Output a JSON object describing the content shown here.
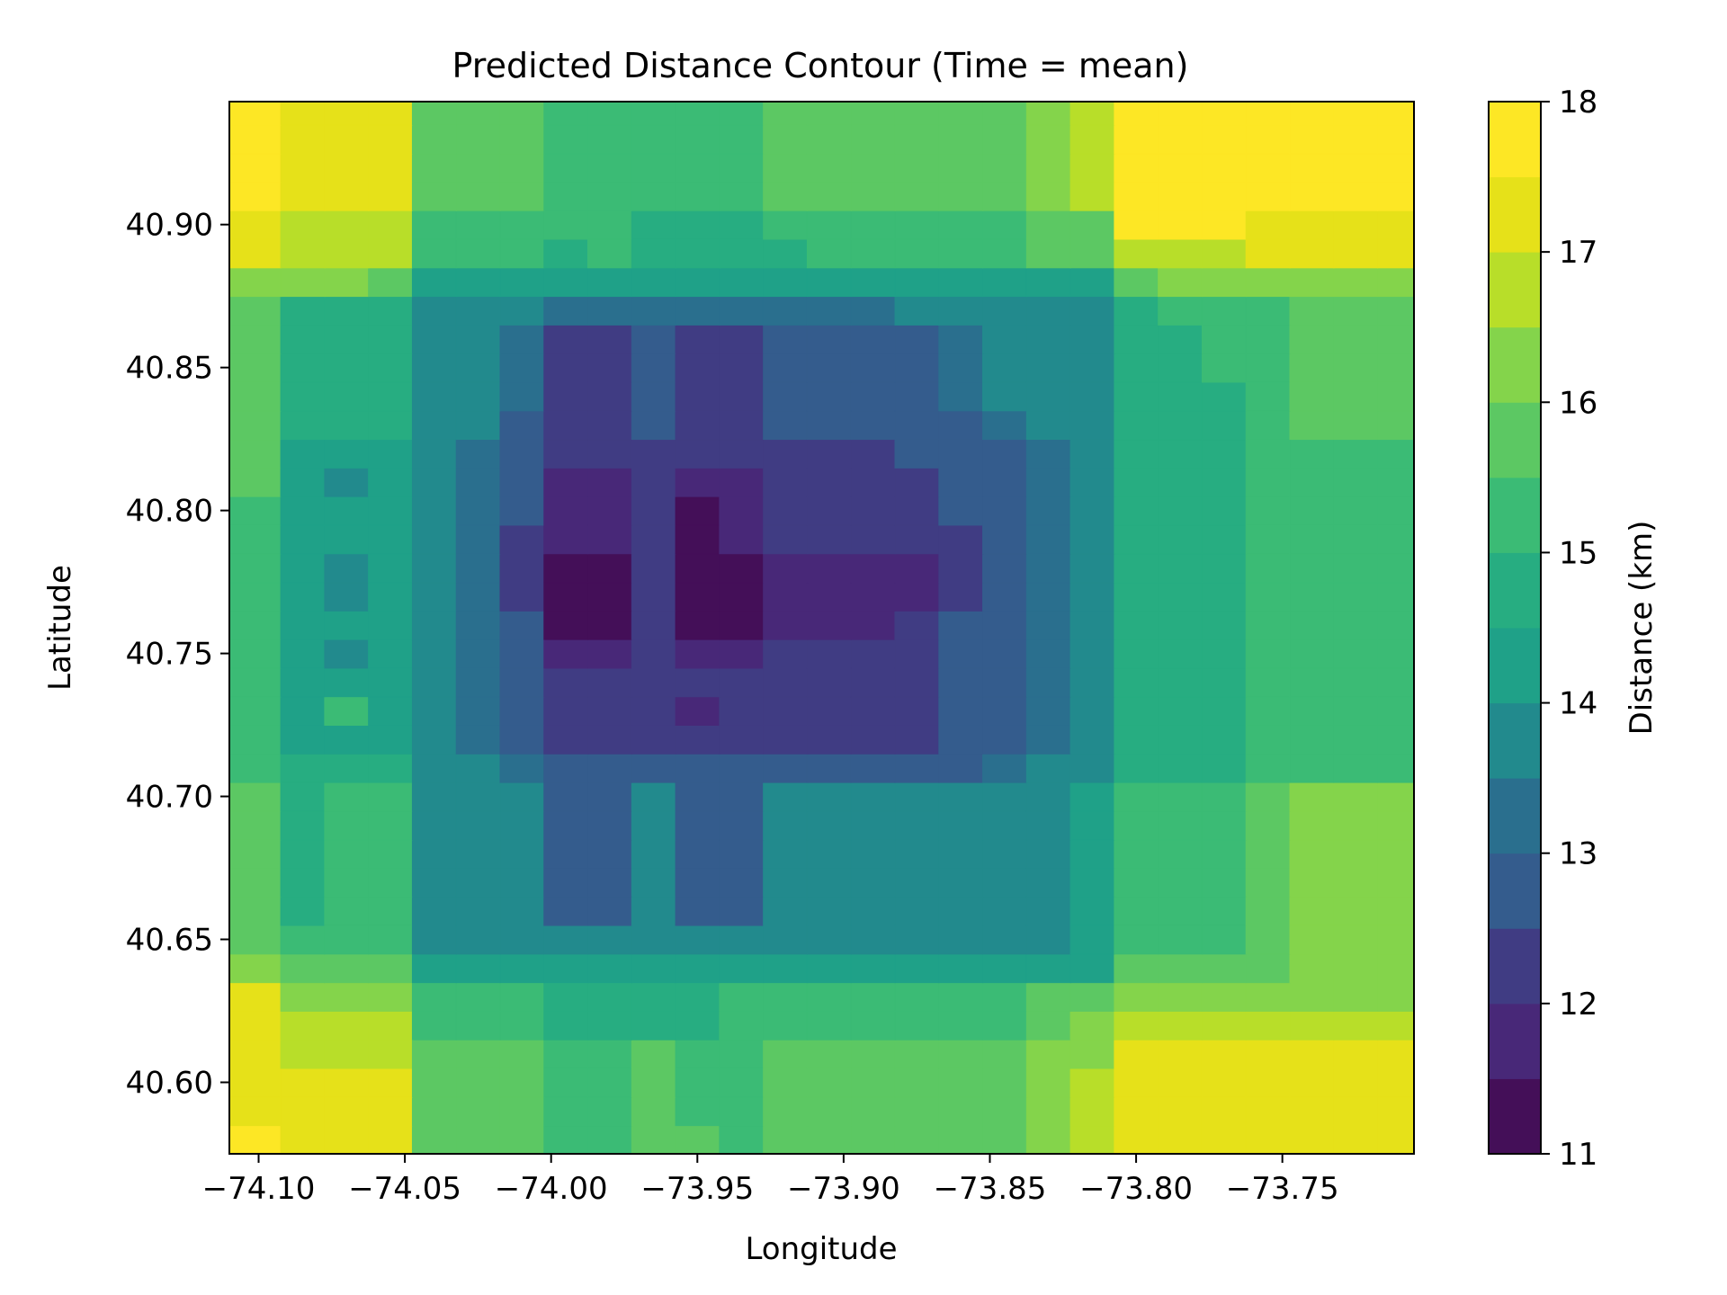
{
  "chart_data": {
    "type": "heatmap",
    "subtype": "filled-contour",
    "title": "Predicted Distance Contour (Time = mean)",
    "xlabel": "Longitude",
    "ylabel": "Latitude",
    "colorbar_label": "Distance (km)",
    "xlim": [
      -74.11,
      -73.705
    ],
    "ylim": [
      40.575,
      40.943
    ],
    "x_ticks": [
      -74.1,
      -74.05,
      -74.0,
      -73.95,
      -73.9,
      -73.85,
      -73.8,
      -73.75
    ],
    "x_tick_labels": [
      "−74.10",
      "−74.05",
      "−74.00",
      "−73.95",
      "−73.90",
      "−73.85",
      "−73.80",
      "−73.75"
    ],
    "y_ticks": [
      40.6,
      40.65,
      40.7,
      40.75,
      40.8,
      40.85,
      40.9
    ],
    "y_tick_labels": [
      "40.60",
      "40.65",
      "40.70",
      "40.75",
      "40.80",
      "40.85",
      "40.90"
    ],
    "colorbar": {
      "range": [
        11,
        18
      ],
      "ticks": [
        11,
        12,
        13,
        14,
        15,
        16,
        17,
        18
      ],
      "tick_labels": [
        "11",
        "12",
        "13",
        "14",
        "15",
        "16",
        "17",
        "18"
      ],
      "level_step": 0.5,
      "colormap": "viridis",
      "level_colors": [
        "#440f58",
        "#482878",
        "#403c83",
        "#345c8d",
        "#2a6f8e",
        "#228a8d",
        "#1fa188",
        "#27ad81",
        "#3bbb75",
        "#5cc863",
        "#84d44b",
        "#b8de29",
        "#e6e119",
        "#fde725"
      ]
    },
    "grid": false,
    "x": [
      -74.1,
      -74.085,
      -74.07,
      -74.055,
      -74.04,
      -74.025,
      -74.01,
      -73.995,
      -73.98,
      -73.965,
      -73.95,
      -73.935,
      -73.92,
      -73.905,
      -73.89,
      -73.875,
      -73.86,
      -73.845,
      -73.83,
      -73.815,
      -73.8,
      -73.785,
      -73.77,
      -73.755,
      -73.74,
      -73.725,
      -73.71
    ],
    "y": [
      40.58,
      40.59,
      40.6,
      40.61,
      40.62,
      40.63,
      40.64,
      40.65,
      40.66,
      40.67,
      40.68,
      40.69,
      40.7,
      40.71,
      40.72,
      40.73,
      40.74,
      40.75,
      40.76,
      40.77,
      40.78,
      40.79,
      40.8,
      40.81,
      40.82,
      40.83,
      40.84,
      40.85,
      40.86,
      40.87,
      40.88,
      40.89,
      40.9,
      40.91,
      40.92,
      40.93,
      40.94
    ],
    "z": [
      [
        17.8,
        17.3,
        17.3,
        17.3,
        15.9,
        15.8,
        15.8,
        15.2,
        15.2,
        15.6,
        15.6,
        15.2,
        15.8,
        15.8,
        15.8,
        15.8,
        15.8,
        15.8,
        16.3,
        16.8,
        17.3,
        17.3,
        17.3,
        17.3,
        17.3,
        17.3,
        17.3
      ],
      [
        17.3,
        17.3,
        17.3,
        17.3,
        15.9,
        15.8,
        15.8,
        15.2,
        15.2,
        15.6,
        15.2,
        15.2,
        15.8,
        15.8,
        15.8,
        15.8,
        15.8,
        15.8,
        16.3,
        16.8,
        17.3,
        17.3,
        17.3,
        17.3,
        17.3,
        17.3,
        17.3
      ],
      [
        17.3,
        17.3,
        17.3,
        17.3,
        15.9,
        15.8,
        15.8,
        15.2,
        15.2,
        15.6,
        15.2,
        15.2,
        15.8,
        15.8,
        15.8,
        15.8,
        15.8,
        15.8,
        16.3,
        16.8,
        17.3,
        17.3,
        17.3,
        17.3,
        17.3,
        17.3,
        17.3
      ],
      [
        17.3,
        16.8,
        16.8,
        16.8,
        15.8,
        15.8,
        15.8,
        15.2,
        15.2,
        15.6,
        15.2,
        15.2,
        15.8,
        15.8,
        15.8,
        15.8,
        15.8,
        15.8,
        16.3,
        16.3,
        17.3,
        17.3,
        17.3,
        17.3,
        17.3,
        17.3,
        17.3
      ],
      [
        17.3,
        16.8,
        16.8,
        16.8,
        15.4,
        15.4,
        15.4,
        14.8,
        14.8,
        14.8,
        14.8,
        15.4,
        15.4,
        15.4,
        15.4,
        15.4,
        15.4,
        15.4,
        15.8,
        16.3,
        16.8,
        16.8,
        16.8,
        16.8,
        16.8,
        16.8,
        16.8
      ],
      [
        17.3,
        16.3,
        16.3,
        16.3,
        15.4,
        15.4,
        15.4,
        14.8,
        14.8,
        14.8,
        14.8,
        15.4,
        15.4,
        15.4,
        15.4,
        15.4,
        15.4,
        15.4,
        15.8,
        15.8,
        16.3,
        16.3,
        16.3,
        16.3,
        16.3,
        16.3,
        16.3
      ],
      [
        16.3,
        15.8,
        15.8,
        15.8,
        14.3,
        14.3,
        14.3,
        14.3,
        14.3,
        14.3,
        14.3,
        14.3,
        14.3,
        14.3,
        14.3,
        14.3,
        14.3,
        14.3,
        14.3,
        14.3,
        15.8,
        15.8,
        15.8,
        15.8,
        16.3,
        16.3,
        16.3
      ],
      [
        15.8,
        15.4,
        15.4,
        15.4,
        13.8,
        13.5,
        13.5,
        13.5,
        13.5,
        13.5,
        13.5,
        13.5,
        13.5,
        13.5,
        13.5,
        13.5,
        13.5,
        13.8,
        13.8,
        14.3,
        15.4,
        15.4,
        15.4,
        15.8,
        16.3,
        16.3,
        16.3
      ],
      [
        15.8,
        14.8,
        15.4,
        15.4,
        13.8,
        13.5,
        13.5,
        12.8,
        12.8,
        13.5,
        12.8,
        12.8,
        13.5,
        13.5,
        13.5,
        13.5,
        13.5,
        13.8,
        13.8,
        14.3,
        15.4,
        15.4,
        15.4,
        15.8,
        16.3,
        16.3,
        16.3
      ],
      [
        15.8,
        14.8,
        15.4,
        15.4,
        13.8,
        13.5,
        13.5,
        12.8,
        12.8,
        13.5,
        12.8,
        12.8,
        13.5,
        13.5,
        13.5,
        13.5,
        13.5,
        13.8,
        13.8,
        14.3,
        15.4,
        15.4,
        15.4,
        15.8,
        16.3,
        16.3,
        16.3
      ],
      [
        15.8,
        14.8,
        15.4,
        15.4,
        13.8,
        13.5,
        13.5,
        12.8,
        12.8,
        13.5,
        12.8,
        12.8,
        13.5,
        13.5,
        13.5,
        13.5,
        13.5,
        13.8,
        13.8,
        14.3,
        15.4,
        15.4,
        15.4,
        15.8,
        16.3,
        16.3,
        16.3
      ],
      [
        15.8,
        14.8,
        15.4,
        15.4,
        13.8,
        13.5,
        13.5,
        12.8,
        12.8,
        13.5,
        12.8,
        12.8,
        13.5,
        13.5,
        13.5,
        13.5,
        13.5,
        13.8,
        13.8,
        14.3,
        15.4,
        15.4,
        15.4,
        15.8,
        16.3,
        16.3,
        16.3
      ],
      [
        15.8,
        14.8,
        15.4,
        15.4,
        13.8,
        13.5,
        13.5,
        12.8,
        12.8,
        13.5,
        12.8,
        12.8,
        13.5,
        13.5,
        13.5,
        13.5,
        13.5,
        13.8,
        13.8,
        14.3,
        15.4,
        15.4,
        15.4,
        15.8,
        16.3,
        16.3,
        16.3
      ],
      [
        15.4,
        14.8,
        14.8,
        14.8,
        13.8,
        13.5,
        13.2,
        12.8,
        12.8,
        12.8,
        12.8,
        12.8,
        12.8,
        12.8,
        12.8,
        12.8,
        12.8,
        13.2,
        13.5,
        13.8,
        14.8,
        14.8,
        14.8,
        15.4,
        15.4,
        15.4,
        15.4
      ],
      [
        15.4,
        14.3,
        14.3,
        14.3,
        13.8,
        13.2,
        12.8,
        12.3,
        12.3,
        12.3,
        12.3,
        12.3,
        12.3,
        12.3,
        12.3,
        12.3,
        12.8,
        12.8,
        13.2,
        13.8,
        14.8,
        14.8,
        14.8,
        15.4,
        15.4,
        15.4,
        15.4
      ],
      [
        15.4,
        14.3,
        15.1,
        14.3,
        13.8,
        13.2,
        12.8,
        12.3,
        12.3,
        12.3,
        11.8,
        12.3,
        12.3,
        12.3,
        12.3,
        12.3,
        12.8,
        12.8,
        13.2,
        13.8,
        14.8,
        14.8,
        14.8,
        15.4,
        15.4,
        15.4,
        15.4
      ],
      [
        15.4,
        14.3,
        14.3,
        14.3,
        13.8,
        13.2,
        12.8,
        12.3,
        12.3,
        12.3,
        12.3,
        12.3,
        12.3,
        12.3,
        12.3,
        12.3,
        12.8,
        12.8,
        13.2,
        13.8,
        14.8,
        14.8,
        14.8,
        15.4,
        15.4,
        15.4,
        15.4
      ],
      [
        15.4,
        14.3,
        13.8,
        14.3,
        13.8,
        13.2,
        12.8,
        11.8,
        11.8,
        12.3,
        11.8,
        11.8,
        12.3,
        12.3,
        12.3,
        12.3,
        12.8,
        12.8,
        13.2,
        13.8,
        14.8,
        14.8,
        14.8,
        15.4,
        15.4,
        15.4,
        15.4
      ],
      [
        15.4,
        14.3,
        14.3,
        14.3,
        13.8,
        13.2,
        12.8,
        11.3,
        11.3,
        12.3,
        11.3,
        11.3,
        11.8,
        11.8,
        11.8,
        12.3,
        12.8,
        12.8,
        13.2,
        13.8,
        14.8,
        14.8,
        14.8,
        15.4,
        15.4,
        15.4,
        15.4
      ],
      [
        15.4,
        14.3,
        13.8,
        14.3,
        13.8,
        13.2,
        12.3,
        11.3,
        11.3,
        12.3,
        11.3,
        11.3,
        11.8,
        11.8,
        11.8,
        11.8,
        12.3,
        12.8,
        13.2,
        13.8,
        14.8,
        14.8,
        14.8,
        15.4,
        15.4,
        15.4,
        15.4
      ],
      [
        15.4,
        14.3,
        13.8,
        14.3,
        13.8,
        13.2,
        12.3,
        11.3,
        11.3,
        12.3,
        11.3,
        11.3,
        11.8,
        11.8,
        11.8,
        11.8,
        12.3,
        12.8,
        13.2,
        13.8,
        14.8,
        14.8,
        14.8,
        15.4,
        15.4,
        15.4,
        15.4
      ],
      [
        15.4,
        14.3,
        14.3,
        14.3,
        13.8,
        13.2,
        12.3,
        11.8,
        11.8,
        12.3,
        11.3,
        11.8,
        12.3,
        12.3,
        12.3,
        12.3,
        12.3,
        12.8,
        13.2,
        13.8,
        14.8,
        14.8,
        14.8,
        15.4,
        15.4,
        15.4,
        15.4
      ],
      [
        15.4,
        14.3,
        14.3,
        14.3,
        13.8,
        13.2,
        12.8,
        11.8,
        11.8,
        12.3,
        11.3,
        11.8,
        12.3,
        12.3,
        12.3,
        12.3,
        12.8,
        12.8,
        13.2,
        13.8,
        14.8,
        14.8,
        14.8,
        15.4,
        15.4,
        15.4,
        15.4
      ],
      [
        15.8,
        14.3,
        13.8,
        14.3,
        13.8,
        13.2,
        12.8,
        11.8,
        11.8,
        12.3,
        11.8,
        11.8,
        12.3,
        12.3,
        12.3,
        12.3,
        12.8,
        12.8,
        13.2,
        13.8,
        14.8,
        14.8,
        14.8,
        15.4,
        15.4,
        15.4,
        15.4
      ],
      [
        15.8,
        14.3,
        14.3,
        14.3,
        13.8,
        13.2,
        12.8,
        12.3,
        12.3,
        12.3,
        12.3,
        12.3,
        12.3,
        12.3,
        12.3,
        12.8,
        12.8,
        12.8,
        13.2,
        13.8,
        14.8,
        14.8,
        14.8,
        15.4,
        15.4,
        15.4,
        15.4
      ],
      [
        15.8,
        14.8,
        14.8,
        14.8,
        13.8,
        13.5,
        12.8,
        12.3,
        12.3,
        12.8,
        12.3,
        12.3,
        12.8,
        12.8,
        12.8,
        12.8,
        12.8,
        13.2,
        13.5,
        13.8,
        14.8,
        14.8,
        14.8,
        15.4,
        15.8,
        15.8,
        15.8
      ],
      [
        15.8,
        14.8,
        14.8,
        14.8,
        13.8,
        13.5,
        13.2,
        12.3,
        12.3,
        12.8,
        12.3,
        12.3,
        12.8,
        12.8,
        12.8,
        12.8,
        13.2,
        13.5,
        13.5,
        13.8,
        14.8,
        14.8,
        14.8,
        15.4,
        15.8,
        15.8,
        15.8
      ],
      [
        15.8,
        14.8,
        14.8,
        14.8,
        13.8,
        13.5,
        13.2,
        12.3,
        12.3,
        12.8,
        12.3,
        12.3,
        12.8,
        12.8,
        12.8,
        12.8,
        13.2,
        13.5,
        13.5,
        13.8,
        14.8,
        14.8,
        15.4,
        15.4,
        15.8,
        15.8,
        15.8
      ],
      [
        15.8,
        14.8,
        14.8,
        14.8,
        13.8,
        13.5,
        13.2,
        12.3,
        12.3,
        12.8,
        12.3,
        12.3,
        12.8,
        12.8,
        12.8,
        12.8,
        13.2,
        13.5,
        13.5,
        13.8,
        14.8,
        14.8,
        15.4,
        15.4,
        15.8,
        15.8,
        15.8
      ],
      [
        15.8,
        14.8,
        14.8,
        14.8,
        13.8,
        13.5,
        13.5,
        13.2,
        13.2,
        13.2,
        13.2,
        13.2,
        13.2,
        13.2,
        13.2,
        13.5,
        13.5,
        13.5,
        13.8,
        13.8,
        14.8,
        15.4,
        15.4,
        15.4,
        15.8,
        15.8,
        15.8
      ],
      [
        16.3,
        16.3,
        16.3,
        15.8,
        14.3,
        14.3,
        14.3,
        14.3,
        14.3,
        14.3,
        14.3,
        14.3,
        14.3,
        14.3,
        14.3,
        14.3,
        14.3,
        14.3,
        14.3,
        14.3,
        15.8,
        16.3,
        16.3,
        16.3,
        16.3,
        16.3,
        16.3
      ],
      [
        17.3,
        16.8,
        16.8,
        16.8,
        15.4,
        15.4,
        15.2,
        14.8,
        15.2,
        14.8,
        14.8,
        14.8,
        14.8,
        15.2,
        15.4,
        15.4,
        15.4,
        15.4,
        15.8,
        15.8,
        16.8,
        16.8,
        16.8,
        17.3,
        17.3,
        17.3,
        17.3
      ],
      [
        17.3,
        16.8,
        16.8,
        16.8,
        15.4,
        15.4,
        15.4,
        15.2,
        15.2,
        14.8,
        14.8,
        14.8,
        15.2,
        15.2,
        15.4,
        15.4,
        15.4,
        15.4,
        15.8,
        15.8,
        17.6,
        17.6,
        17.6,
        17.3,
        17.3,
        17.3,
        17.3
      ],
      [
        17.8,
        17.3,
        17.3,
        17.3,
        15.8,
        15.8,
        15.8,
        15.2,
        15.2,
        15.2,
        15.2,
        15.2,
        15.8,
        15.8,
        15.8,
        15.8,
        15.8,
        15.8,
        16.3,
        16.8,
        17.6,
        17.6,
        17.6,
        17.6,
        17.6,
        17.6,
        17.6
      ],
      [
        17.8,
        17.3,
        17.3,
        17.3,
        15.8,
        15.8,
        15.8,
        15.2,
        15.2,
        15.2,
        15.2,
        15.2,
        15.8,
        15.8,
        15.8,
        15.8,
        15.8,
        15.8,
        16.3,
        16.8,
        17.6,
        17.6,
        17.6,
        17.6,
        17.6,
        17.6,
        17.6
      ],
      [
        17.8,
        17.3,
        17.3,
        17.3,
        15.8,
        15.8,
        15.8,
        15.2,
        15.2,
        15.2,
        15.2,
        15.2,
        15.8,
        15.8,
        15.8,
        15.8,
        15.8,
        15.8,
        16.3,
        16.8,
        17.6,
        17.6,
        17.6,
        17.6,
        17.6,
        17.6,
        17.6
      ],
      [
        17.8,
        17.3,
        17.3,
        17.3,
        15.8,
        15.8,
        15.8,
        15.2,
        15.2,
        15.2,
        15.2,
        15.2,
        15.8,
        15.8,
        15.8,
        15.8,
        15.8,
        15.8,
        16.3,
        16.8,
        17.6,
        17.6,
        17.6,
        17.6,
        17.6,
        17.6,
        17.6
      ]
    ]
  }
}
